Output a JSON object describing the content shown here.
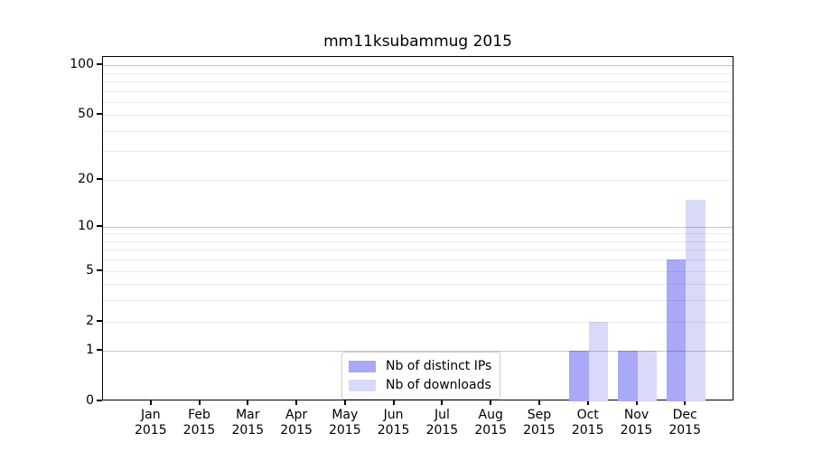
{
  "figure": {
    "title": "mm11ksubammug 2015"
  },
  "chart_data": {
    "type": "bar",
    "title": "mm11ksubammug 2015",
    "xlabel": "",
    "ylabel": "",
    "categories": [
      "Jan",
      "Feb",
      "Mar",
      "Apr",
      "May",
      "Jun",
      "Jul",
      "Aug",
      "Sep",
      "Oct",
      "Nov",
      "Dec"
    ],
    "category_year": "2015",
    "series": [
      {
        "name": "Nb of distinct IPs",
        "color": "#a9a9f7",
        "values": [
          0,
          0,
          0,
          0,
          0,
          0,
          0,
          0,
          0,
          1,
          1,
          6
        ]
      },
      {
        "name": "Nb of downloads",
        "color": "#d9d9f9",
        "values": [
          0,
          0,
          0,
          0,
          0,
          0,
          0,
          0,
          0,
          2,
          1,
          15
        ]
      }
    ],
    "y_axis": {
      "scale": "log1p",
      "tick_values": [
        0,
        1,
        2,
        5,
        10,
        20,
        50,
        100
      ],
      "tick_labels": [
        "0",
        "1",
        "2",
        "5",
        "10",
        "20",
        "50",
        "100"
      ],
      "major_gridlines": [
        1,
        10,
        100
      ],
      "minor_gridlines": [
        2,
        3,
        4,
        5,
        6,
        7,
        8,
        9,
        20,
        30,
        40,
        50,
        60,
        70,
        80,
        90
      ],
      "max": 112
    },
    "legend": {
      "position": "lower center",
      "entries": [
        "Nb of distinct IPs",
        "Nb of downloads"
      ]
    },
    "grid": "on"
  },
  "colors": {
    "bar_distinct_ips": "#a9a9f7",
    "bar_downloads": "#d9d9f9",
    "grid_major": "#c8c8c8",
    "grid_minor": "#ececec",
    "axis": "#000000",
    "legend_border": "#cccccc",
    "background": "#ffffff"
  }
}
